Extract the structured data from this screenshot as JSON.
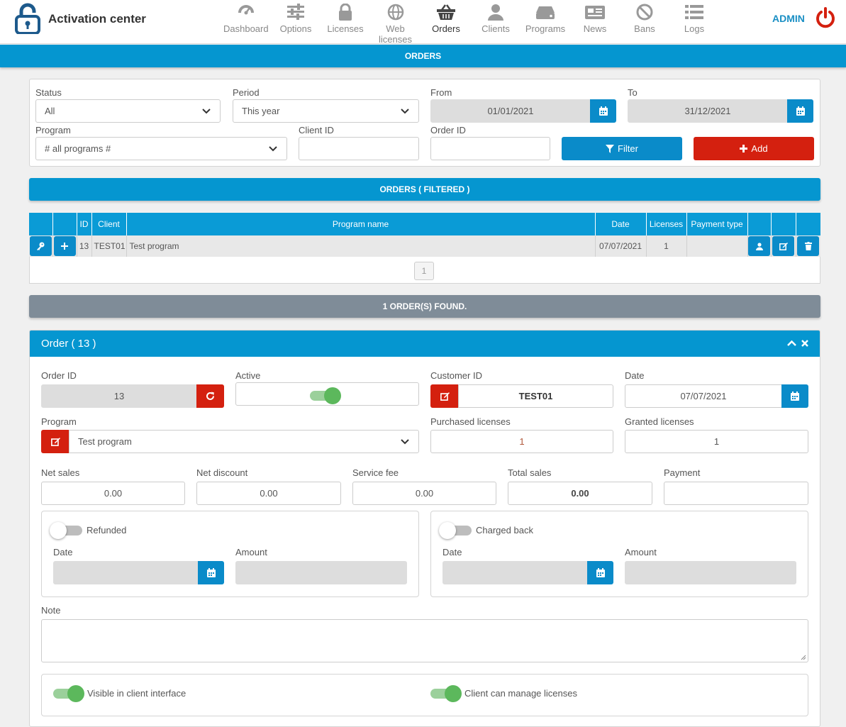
{
  "app": {
    "title": "Activation center",
    "user": "ADMIN"
  },
  "nav": [
    {
      "label": "Dashboard",
      "icon": "dashboard-gauge-icon"
    },
    {
      "label": "Options",
      "icon": "sliders-icon"
    },
    {
      "label": "Licenses",
      "icon": "lock-icon"
    },
    {
      "label": "Web licenses",
      "icon": "globe-icon"
    },
    {
      "label": "Orders",
      "icon": "basket-icon",
      "active": true
    },
    {
      "label": "Clients",
      "icon": "user-icon"
    },
    {
      "label": "Programs",
      "icon": "hdd-icon"
    },
    {
      "label": "News",
      "icon": "newspaper-icon"
    },
    {
      "label": "Bans",
      "icon": "ban-icon"
    },
    {
      "label": "Logs",
      "icon": "list-icon"
    }
  ],
  "page_title": "ORDERS",
  "filters": {
    "status_label": "Status",
    "status_value": "All",
    "period_label": "Period",
    "period_value": "This year",
    "from_label": "From",
    "from_value": "01/01/2021",
    "to_label": "To",
    "to_value": "31/12/2021",
    "program_label": "Program",
    "program_value": "# all programs #",
    "client_id_label": "Client ID",
    "client_id_value": "",
    "order_id_label": "Order ID",
    "order_id_value": "",
    "filter_button": "Filter",
    "add_button": "Add"
  },
  "orders_bar": "ORDERS ( FILTERED )",
  "table": {
    "headers": [
      "",
      "",
      "ID",
      "Client",
      "Program name",
      "Date",
      "Licenses",
      "Payment type",
      "",
      "",
      ""
    ],
    "rows": [
      {
        "id": "13",
        "client": "TEST01",
        "program": "Test program",
        "date": "07/07/2021",
        "licenses": "1",
        "payment_type": ""
      }
    ],
    "page": "1"
  },
  "found_bar": "1 ORDER(S) FOUND.",
  "order": {
    "title": "Order ( 13 )",
    "order_id_label": "Order ID",
    "order_id_value": "13",
    "active_label": "Active",
    "active": true,
    "customer_id_label": "Customer ID",
    "customer_id_value": "TEST01",
    "date_label": "Date",
    "date_value": "07/07/2021",
    "program_label": "Program",
    "program_value": "Test program",
    "purchased_label": "Purchased licenses",
    "purchased_value": "1",
    "granted_label": "Granted licenses",
    "granted_value": "1",
    "net_sales_label": "Net sales",
    "net_sales_value": "0.00",
    "net_discount_label": "Net discount",
    "net_discount_value": "0.00",
    "service_fee_label": "Service fee",
    "service_fee_value": "0.00",
    "total_sales_label": "Total sales",
    "total_sales_value": "0.00",
    "payment_label": "Payment",
    "payment_value": "",
    "refunded_label": "Refunded",
    "refunded": false,
    "refund_date_label": "Date",
    "refund_amount_label": "Amount",
    "chargeback_label": "Charged back",
    "chargeback": false,
    "chargeback_date_label": "Date",
    "chargeback_amount_label": "Amount",
    "note_label": "Note",
    "note_value": "",
    "visible_label": "Visible in client interface",
    "visible": true,
    "manage_label": "Client can manage licenses",
    "manage": true
  },
  "colors": {
    "primary": "#0596d0",
    "danger": "#d4200f",
    "success": "#5cb85c",
    "muted_bar": "#7f8c98"
  }
}
